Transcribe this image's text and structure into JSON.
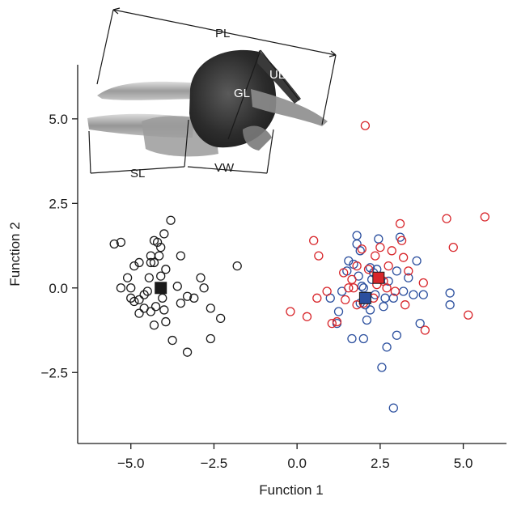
{
  "chart_data": {
    "type": "scatter",
    "title": "",
    "xlabel": "Function 1",
    "ylabel": "Function 2",
    "xlim": [
      -6.6,
      6.3
    ],
    "ylim": [
      -4.6,
      6.6
    ],
    "xticks": [
      -5.0,
      -2.5,
      0.0,
      2.5,
      5.0
    ],
    "xtick_labels": [
      "−5.0",
      "−2.5",
      "0.0",
      "2.5",
      "5.0"
    ],
    "yticks": [
      -2.5,
      0.0,
      2.5,
      5.0
    ],
    "ytick_labels": [
      "−2.5",
      "0.0",
      "2.5",
      "5.0"
    ],
    "grid": false,
    "legend": "none",
    "series": [
      {
        "color": "#1a1a1a",
        "marker": "open-circle",
        "points": [
          [
            -5.5,
            1.3
          ],
          [
            -5.3,
            1.35
          ],
          [
            -4.9,
            0.65
          ],
          [
            -5.1,
            0.3
          ],
          [
            -5.3,
            0.0
          ],
          [
            -5.0,
            0.0
          ],
          [
            -5.0,
            -0.3
          ],
          [
            -4.9,
            -0.4
          ],
          [
            -4.75,
            -0.35
          ],
          [
            -4.6,
            -0.6
          ],
          [
            -4.6,
            -0.2
          ],
          [
            -4.5,
            -0.1
          ],
          [
            -4.4,
            -0.7
          ],
          [
            -4.3,
            -1.1
          ],
          [
            -4.25,
            -0.55
          ],
          [
            -4.45,
            0.3
          ],
          [
            -4.75,
            0.75
          ],
          [
            -4.4,
            0.75
          ],
          [
            -4.4,
            0.95
          ],
          [
            -4.3,
            0.75
          ],
          [
            -4.3,
            1.4
          ],
          [
            -4.2,
            1.35
          ],
          [
            -4.15,
            0.95
          ],
          [
            -4.1,
            1.2
          ],
          [
            -3.95,
            0.55
          ],
          [
            -4.1,
            0.35
          ],
          [
            -4.05,
            -0.3
          ],
          [
            -4.0,
            -0.65
          ],
          [
            -3.95,
            -1.0
          ],
          [
            -4.0,
            1.6
          ],
          [
            -3.8,
            2.0
          ],
          [
            -3.5,
            0.95
          ],
          [
            -3.75,
            -1.55
          ],
          [
            -3.5,
            -0.45
          ],
          [
            -3.3,
            -0.25
          ],
          [
            -3.3,
            -1.9
          ],
          [
            -3.1,
            -0.3
          ],
          [
            -2.9,
            0.3
          ],
          [
            -2.8,
            0.0
          ],
          [
            -2.6,
            -0.6
          ],
          [
            -2.3,
            -0.9
          ],
          [
            -2.6,
            -1.5
          ],
          [
            -1.8,
            0.65
          ],
          [
            -3.6,
            0.05
          ],
          [
            -4.75,
            -0.75
          ]
        ]
      },
      {
        "color": "#2b4f9e",
        "marker": "open-circle",
        "points": [
          [
            1.0,
            -0.3
          ],
          [
            1.2,
            -1.05
          ],
          [
            1.25,
            -0.7
          ],
          [
            1.35,
            -0.1
          ],
          [
            1.5,
            0.5
          ],
          [
            1.55,
            0.8
          ],
          [
            1.7,
            0.7
          ],
          [
            1.8,
            1.55
          ],
          [
            1.8,
            1.3
          ],
          [
            1.85,
            0.35
          ],
          [
            1.9,
            -0.45
          ],
          [
            1.95,
            0.05
          ],
          [
            2.05,
            -0.5
          ],
          [
            2.1,
            -0.25
          ],
          [
            2.1,
            -0.95
          ],
          [
            2.0,
            -1.5
          ],
          [
            2.2,
            -0.65
          ],
          [
            2.2,
            0.6
          ],
          [
            2.3,
            0.45
          ],
          [
            2.35,
            -0.2
          ],
          [
            2.45,
            1.45
          ],
          [
            2.5,
            0.3
          ],
          [
            2.55,
            -2.35
          ],
          [
            2.65,
            -0.3
          ],
          [
            2.6,
            -0.55
          ],
          [
            2.7,
            -1.75
          ],
          [
            2.75,
            0.2
          ],
          [
            2.9,
            -0.3
          ],
          [
            3.0,
            -1.4
          ],
          [
            3.0,
            0.5
          ],
          [
            3.1,
            1.5
          ],
          [
            3.2,
            -0.1
          ],
          [
            3.35,
            0.3
          ],
          [
            3.5,
            -0.2
          ],
          [
            3.6,
            0.8
          ],
          [
            3.7,
            -1.05
          ],
          [
            3.8,
            -0.2
          ],
          [
            4.6,
            -0.5
          ],
          [
            4.6,
            -0.15
          ],
          [
            2.9,
            -3.55
          ],
          [
            1.9,
            1.1
          ],
          [
            2.25,
            0.25
          ],
          [
            2.4,
            0.55
          ],
          [
            1.65,
            -1.5
          ],
          [
            2.0,
            0.0
          ]
        ]
      },
      {
        "color": "#d8262b",
        "marker": "open-circle",
        "points": [
          [
            -0.2,
            -0.7
          ],
          [
            0.5,
            1.4
          ],
          [
            0.65,
            0.95
          ],
          [
            0.6,
            -0.3
          ],
          [
            0.9,
            -0.1
          ],
          [
            1.2,
            -1.0
          ],
          [
            1.4,
            0.45
          ],
          [
            1.45,
            -0.35
          ],
          [
            1.55,
            0.0
          ],
          [
            1.65,
            0.25
          ],
          [
            1.7,
            0.0
          ],
          [
            1.8,
            0.65
          ],
          [
            1.8,
            -0.5
          ],
          [
            1.95,
            1.15
          ],
          [
            2.0,
            -0.45
          ],
          [
            2.05,
            4.8
          ],
          [
            2.15,
            0.55
          ],
          [
            2.3,
            -0.3
          ],
          [
            2.4,
            0.1
          ],
          [
            2.5,
            1.2
          ],
          [
            2.6,
            0.2
          ],
          [
            2.75,
            0.65
          ],
          [
            2.85,
            1.1
          ],
          [
            3.1,
            1.9
          ],
          [
            3.15,
            1.4
          ],
          [
            3.2,
            0.9
          ],
          [
            3.25,
            -0.5
          ],
          [
            3.35,
            0.5
          ],
          [
            3.8,
            0.15
          ],
          [
            3.85,
            -1.25
          ],
          [
            4.5,
            2.05
          ],
          [
            4.7,
            1.2
          ],
          [
            5.15,
            -0.8
          ],
          [
            5.65,
            2.1
          ],
          [
            1.05,
            -1.05
          ],
          [
            2.95,
            -0.1
          ],
          [
            2.7,
            0.0
          ],
          [
            2.35,
            0.95
          ],
          [
            0.3,
            -0.85
          ]
        ]
      }
    ],
    "centroids": [
      {
        "x": -4.1,
        "y": 0.0,
        "color": "#1a1a1a"
      },
      {
        "x": 2.05,
        "y": -0.3,
        "color": "#2b4f9e"
      },
      {
        "x": 2.45,
        "y": 0.3,
        "color": "#d8262b"
      }
    ],
    "annotations": [
      "PL",
      "UL",
      "GL",
      "SL",
      "VW"
    ]
  }
}
